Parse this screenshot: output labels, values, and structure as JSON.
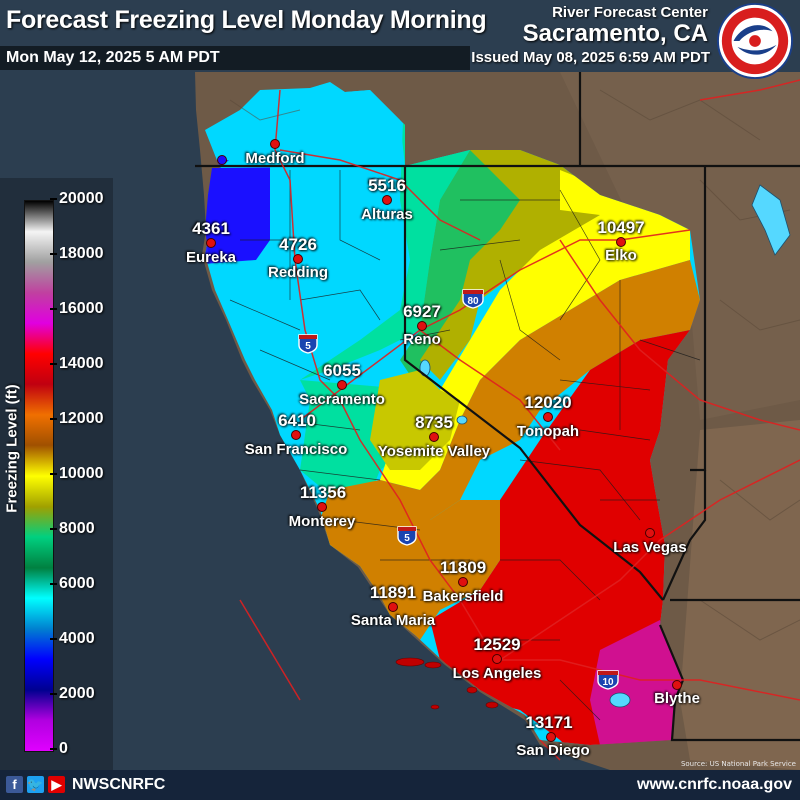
{
  "header": {
    "title": "Forecast Freezing Level Monday Morning",
    "valid_time": "Mon May 12, 2025 5 AM PDT",
    "org_line1": "River Forecast Center",
    "org_line2": "Sacramento, CA",
    "issued": "Issued May 08, 2025 6:59 AM PDT",
    "logo_text": "NATIONAL WEATHER SERVICE"
  },
  "legend": {
    "title": "Freezing Level (ft)",
    "ticks": [
      "20000",
      "18000",
      "16000",
      "14000",
      "12000",
      "10000",
      "8000",
      "6000",
      "4000",
      "2000",
      "0"
    ],
    "colors": [
      "#000000",
      "#f4f4f4",
      "#a0a0a0",
      "#c040a0",
      "#e000e0",
      "#ff0000",
      "#c00010",
      "#f07000",
      "#a05000",
      "#ffff00",
      "#a0a000",
      "#00d080",
      "#008040",
      "#00ffff",
      "#0080d0",
      "#0000ff",
      "#000090",
      "#b000e0",
      "#e000ff"
    ]
  },
  "cities": {
    "medford": {
      "name": "Medford"
    },
    "eureka": {
      "name": "Eureka",
      "value": "4361"
    },
    "redding": {
      "name": "Redding",
      "value": "4726"
    },
    "alturas": {
      "name": "Alturas",
      "value": "5516"
    },
    "elko": {
      "name": "Elko",
      "value": "10497"
    },
    "reno": {
      "name": "Reno",
      "value": "6927"
    },
    "sacramento": {
      "name": "Sacramento",
      "value": "6055"
    },
    "san_francisco": {
      "name": "San Francisco",
      "value": "6410"
    },
    "yosemite": {
      "name": "Yosemite Valley",
      "value": "8735"
    },
    "tonopah": {
      "name": "Tonopah",
      "value": "12020"
    },
    "monterey": {
      "name": "Monterey",
      "value": "11356"
    },
    "bakersfield": {
      "name": "Bakersfield",
      "value": "11809"
    },
    "santa_maria": {
      "name": "Santa Maria",
      "value": "11891"
    },
    "las_vegas": {
      "name": "Las Vegas"
    },
    "los_angeles": {
      "name": "Los Angeles",
      "value": "12529"
    },
    "blythe": {
      "name": "Blythe"
    },
    "san_diego": {
      "name": "San Diego",
      "value": "13171"
    }
  },
  "shields": {
    "i5_north": "5",
    "i80": "80",
    "i5_south": "5",
    "i10": "10"
  },
  "footer": {
    "handle": "NWSCNRFC",
    "url": "www.cnrfc.noaa.gov",
    "source": "Source: US National Park Service",
    "social_icons": [
      "facebook-icon",
      "twitter-icon",
      "youtube-icon"
    ]
  }
}
